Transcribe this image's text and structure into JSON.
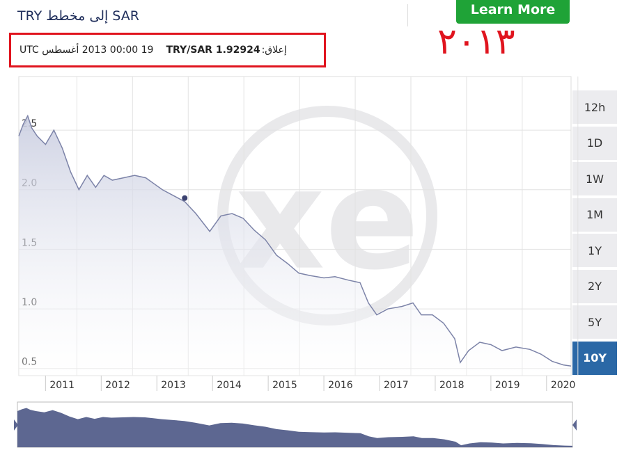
{
  "header": {
    "title": "TRY إلى مخطط SAR",
    "button": "Learn More",
    "timestamp": "19 00:00 2013 أغسطس UTC",
    "pair": "TRY/SAR 1.92924",
    "close_label": "إعلاق:",
    "annotation": "٢٠١٣"
  },
  "range_buttons": [
    "12h",
    "1D",
    "1W",
    "1M",
    "1Y",
    "2Y",
    "5Y",
    "10Y"
  ],
  "selected_index": 7,
  "chart_data": {
    "type": "line",
    "color": "#7c83a8",
    "fill": "#c9cde0",
    "navigator_color": "#5d6791",
    "x": [
      2010.52,
      2010.6,
      2010.68,
      2010.75,
      2010.85,
      2011.0,
      2011.15,
      2011.3,
      2011.45,
      2011.6,
      2011.75,
      2011.9,
      2012.05,
      2012.2,
      2012.4,
      2012.6,
      2012.8,
      2012.95,
      2013.1,
      2013.3,
      2013.5,
      2013.7,
      2013.95,
      2014.15,
      2014.35,
      2014.55,
      2014.75,
      2014.95,
      2015.15,
      2015.35,
      2015.55,
      2015.75,
      2016.0,
      2016.2,
      2016.45,
      2016.65,
      2016.8,
      2016.95,
      2017.15,
      2017.4,
      2017.6,
      2017.75,
      2017.95,
      2018.15,
      2018.35,
      2018.45,
      2018.6,
      2018.8,
      2019.0,
      2019.2,
      2019.45,
      2019.7,
      2019.9,
      2020.1,
      2020.3,
      2020.44
    ],
    "values": [
      2.45,
      2.55,
      2.62,
      2.52,
      2.45,
      2.38,
      2.5,
      2.35,
      2.15,
      2.0,
      2.12,
      2.02,
      2.12,
      2.08,
      2.1,
      2.12,
      2.1,
      2.05,
      2.0,
      1.95,
      1.9,
      1.8,
      1.65,
      1.78,
      1.8,
      1.76,
      1.66,
      1.58,
      1.45,
      1.38,
      1.3,
      1.28,
      1.26,
      1.27,
      1.24,
      1.22,
      1.05,
      0.95,
      1.0,
      1.02,
      1.05,
      0.95,
      0.95,
      0.88,
      0.75,
      0.55,
      0.65,
      0.72,
      0.7,
      0.65,
      0.68,
      0.66,
      0.62,
      0.56,
      0.53,
      0.52
    ],
    "highlight": {
      "x": 2013.5,
      "y": 1.93
    },
    "xlim": [
      2010.52,
      2020.44
    ],
    "ylim": [
      0.44,
      2.95
    ],
    "xticks": [
      2011,
      2012,
      2013,
      2014,
      2015,
      2016,
      2017,
      2018,
      2019,
      2020
    ],
    "yticks": [
      0.5,
      1.0,
      1.5,
      2.0,
      2.5
    ],
    "grid": true
  }
}
